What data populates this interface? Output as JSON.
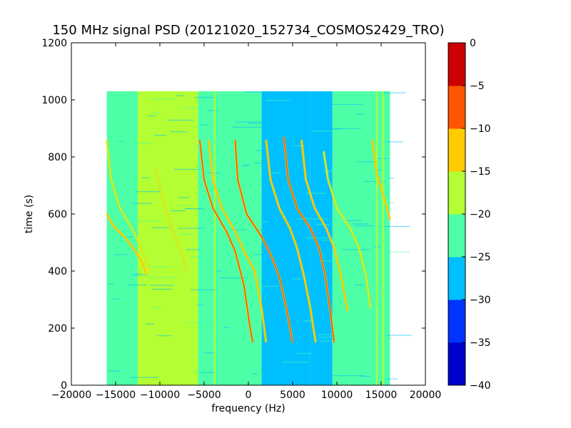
{
  "chart_data": {
    "type": "heatmap",
    "title": "150 MHz signal PSD (20121020_152734_COSMOS2429_TRO)",
    "xlabel": "frequency (Hz)",
    "ylabel": "time (s)",
    "xlim": [
      -20000,
      20000
    ],
    "ylim": [
      0,
      1200
    ],
    "xticks": [
      -20000,
      -15000,
      -10000,
      -5000,
      0,
      5000,
      10000,
      15000,
      20000
    ],
    "xtick_labels": [
      "−20000",
      "−15000",
      "−10000",
      "−5000",
      "0",
      "5000",
      "10000",
      "15000",
      "20000"
    ],
    "yticks": [
      0,
      200,
      400,
      600,
      800,
      1000,
      1200
    ],
    "ytick_labels": [
      "0",
      "200",
      "400",
      "600",
      "800",
      "1000",
      "1200"
    ],
    "data_extent": {
      "freq": [
        -16000,
        16000
      ],
      "time": [
        0,
        1030
      ]
    },
    "colorbar": {
      "levels": [
        -40,
        -35,
        -30,
        -25,
        -20,
        -15,
        -10,
        -5,
        0
      ],
      "tick_labels": [
        "−40",
        "−35",
        "−30",
        "−25",
        "−20",
        "−15",
        "−10",
        "−5",
        "0"
      ],
      "colors": [
        "#0000cc",
        "#0033ff",
        "#00bfff",
        "#4dffa6",
        "#b3ff33",
        "#ffcc00",
        "#ff5500",
        "#cc0000"
      ]
    },
    "background_bands": [
      {
        "from": -16000,
        "to": -12500,
        "level": -22
      },
      {
        "from": -12500,
        "to": -5700,
        "level": -18
      },
      {
        "from": -5700,
        "to": 1500,
        "level": -22
      },
      {
        "from": 1500,
        "to": 7000,
        "level": -27
      },
      {
        "from": 7000,
        "to": 9500,
        "level": -26
      },
      {
        "from": 9500,
        "to": 16000,
        "level": -22
      }
    ],
    "vertical_lines": [
      {
        "freq": -3800,
        "level": -17
      },
      {
        "freq": 14500,
        "level": -18
      },
      {
        "freq": 15200,
        "level": -18
      }
    ],
    "traces": [
      {
        "points": [
          [
            -16000,
            860
          ],
          [
            -15500,
            720
          ],
          [
            -14500,
            620
          ],
          [
            -13000,
            540
          ],
          [
            -12000,
            470
          ],
          [
            -11000,
            400
          ]
        ],
        "level": -16
      },
      {
        "points": [
          [
            -16000,
            600
          ],
          [
            -15300,
            560
          ],
          [
            -14000,
            520
          ],
          [
            -13000,
            480
          ],
          [
            -12000,
            430
          ],
          [
            -11500,
            390
          ]
        ],
        "level": -15
      },
      {
        "points": [
          [
            -10500,
            760
          ],
          [
            -9500,
            630
          ],
          [
            -8500,
            540
          ],
          [
            -7500,
            460
          ],
          [
            -7000,
            400
          ]
        ],
        "level": -17
      },
      {
        "points": [
          [
            -5500,
            860
          ],
          [
            -5000,
            720
          ],
          [
            -4000,
            620
          ],
          [
            -2500,
            540
          ],
          [
            -1500,
            470
          ],
          [
            -500,
            350
          ],
          [
            200,
            200
          ],
          [
            500,
            150
          ]
        ],
        "level": -8
      },
      {
        "points": [
          [
            -4500,
            860
          ],
          [
            -4000,
            720
          ],
          [
            -3000,
            620
          ],
          [
            -1500,
            540
          ],
          [
            -500,
            470
          ],
          [
            700,
            400
          ],
          [
            1500,
            270
          ],
          [
            2000,
            150
          ]
        ],
        "level": -11
      },
      {
        "points": [
          [
            -1500,
            860
          ],
          [
            -1200,
            720
          ],
          [
            -200,
            600
          ],
          [
            1500,
            520
          ],
          [
            2500,
            460
          ],
          [
            3500,
            380
          ],
          [
            4300,
            270
          ],
          [
            5000,
            150
          ]
        ],
        "level": -6
      },
      {
        "points": [
          [
            2000,
            860
          ],
          [
            2500,
            720
          ],
          [
            3500,
            620
          ],
          [
            4700,
            550
          ],
          [
            5500,
            480
          ],
          [
            6300,
            380
          ],
          [
            7000,
            270
          ],
          [
            7600,
            150
          ]
        ],
        "level": -11
      },
      {
        "points": [
          [
            4000,
            870
          ],
          [
            4500,
            720
          ],
          [
            5500,
            620
          ],
          [
            7000,
            550
          ],
          [
            8000,
            480
          ],
          [
            8700,
            380
          ],
          [
            9200,
            270
          ],
          [
            9700,
            150
          ]
        ],
        "level": -10
      },
      {
        "points": [
          [
            6000,
            860
          ],
          [
            6500,
            720
          ],
          [
            7500,
            620
          ],
          [
            8800,
            550
          ],
          [
            9700,
            480
          ],
          [
            10500,
            380
          ],
          [
            11200,
            260
          ]
        ],
        "level": -14
      },
      {
        "points": [
          [
            8500,
            820
          ],
          [
            9000,
            720
          ],
          [
            10000,
            620
          ],
          [
            11500,
            550
          ],
          [
            12500,
            480
          ],
          [
            13300,
            380
          ],
          [
            13800,
            270
          ]
        ],
        "level": -18
      },
      {
        "points": [
          [
            14000,
            860
          ],
          [
            14500,
            740
          ],
          [
            15500,
            640
          ],
          [
            16000,
            580
          ]
        ],
        "level": -15
      }
    ]
  }
}
